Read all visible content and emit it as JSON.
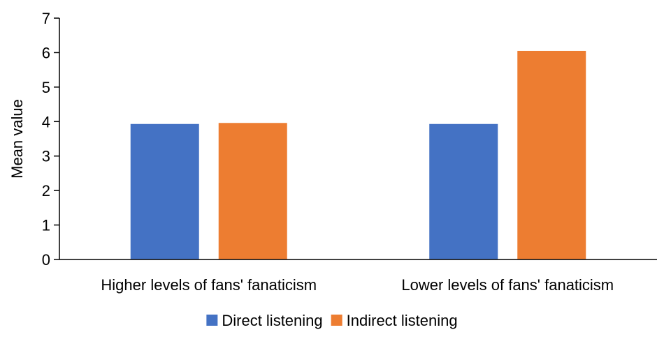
{
  "chart_data": {
    "type": "bar",
    "categories": [
      "Higher levels of fans' fanaticism",
      "Lower levels of fans' fanaticism"
    ],
    "series": [
      {
        "name": "Direct listening",
        "values": [
          3.93,
          3.93
        ],
        "color": "#4472C4"
      },
      {
        "name": "Indirect listening",
        "values": [
          3.96,
          6.05
        ],
        "color": "#ED7D31"
      }
    ],
    "title": "",
    "xlabel": "",
    "ylabel": "Mean value",
    "ylim": [
      0,
      7
    ],
    "yticks": [
      "0",
      "1",
      "2",
      "3",
      "4",
      "5",
      "6",
      "7"
    ],
    "grid": false,
    "legend_position": "bottom-center"
  }
}
